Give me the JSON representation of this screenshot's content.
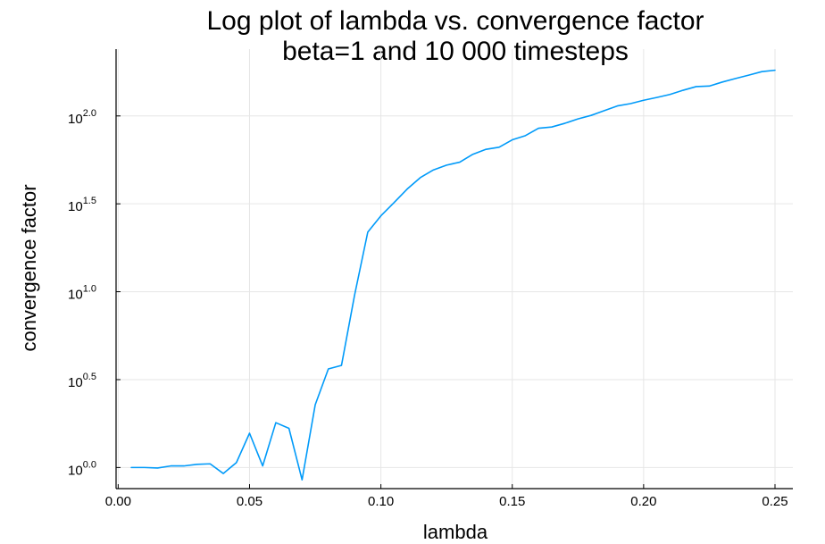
{
  "chart_data": {
    "type": "line",
    "title": "Log plot of lambda vs. convergence factor",
    "subtitle": "beta=1 and 10 000 timesteps",
    "xlabel": "lambda",
    "ylabel": "convergence factor",
    "xlim": [
      -0.0008,
      0.2568
    ],
    "ylim_log10": [
      -0.12,
      2.38
    ],
    "y_scale": "log10",
    "grid": true,
    "legend": "none",
    "x_ticks": [
      {
        "value": 0.0,
        "label": "0.00"
      },
      {
        "value": 0.05,
        "label": "0.05"
      },
      {
        "value": 0.1,
        "label": "0.10"
      },
      {
        "value": 0.15,
        "label": "0.15"
      },
      {
        "value": 0.2,
        "label": "0.20"
      },
      {
        "value": 0.25,
        "label": "0.25"
      }
    ],
    "y_ticks": [
      {
        "value_log10": 0.0,
        "base": "10",
        "exponent": "0.0"
      },
      {
        "value_log10": 0.5,
        "base": "10",
        "exponent": "0.5"
      },
      {
        "value_log10": 1.0,
        "base": "10",
        "exponent": "1.0"
      },
      {
        "value_log10": 1.5,
        "base": "10",
        "exponent": "1.5"
      },
      {
        "value_log10": 2.0,
        "base": "10",
        "exponent": "2.0"
      }
    ],
    "series": [
      {
        "color": "#009af9",
        "x": [
          0.005,
          0.01,
          0.015,
          0.02,
          0.025,
          0.03,
          0.035,
          0.04,
          0.045,
          0.05,
          0.055,
          0.06,
          0.065,
          0.07,
          0.075,
          0.08,
          0.085,
          0.09,
          0.095,
          0.1,
          0.105,
          0.11,
          0.115,
          0.12,
          0.125,
          0.13,
          0.135,
          0.14,
          0.145,
          0.15,
          0.155,
          0.16,
          0.165,
          0.17,
          0.175,
          0.18,
          0.185,
          0.19,
          0.195,
          0.2,
          0.205,
          0.21,
          0.215,
          0.22,
          0.225,
          0.23,
          0.235,
          0.24,
          0.245,
          0.25
        ],
        "log10_y": [
          0.0,
          0.0,
          -0.003,
          0.009,
          0.009,
          0.018,
          0.021,
          -0.034,
          0.028,
          0.195,
          0.009,
          0.255,
          0.223,
          -0.07,
          0.357,
          0.561,
          0.581,
          0.982,
          1.339,
          1.432,
          1.507,
          1.584,
          1.649,
          1.693,
          1.72,
          1.737,
          1.782,
          1.81,
          1.822,
          1.864,
          1.888,
          1.93,
          1.937,
          1.958,
          1.983,
          2.003,
          2.03,
          2.057,
          2.07,
          2.089,
          2.105,
          2.122,
          2.146,
          2.167,
          2.17,
          2.193,
          2.213,
          2.232,
          2.252,
          2.26
        ]
      }
    ]
  }
}
